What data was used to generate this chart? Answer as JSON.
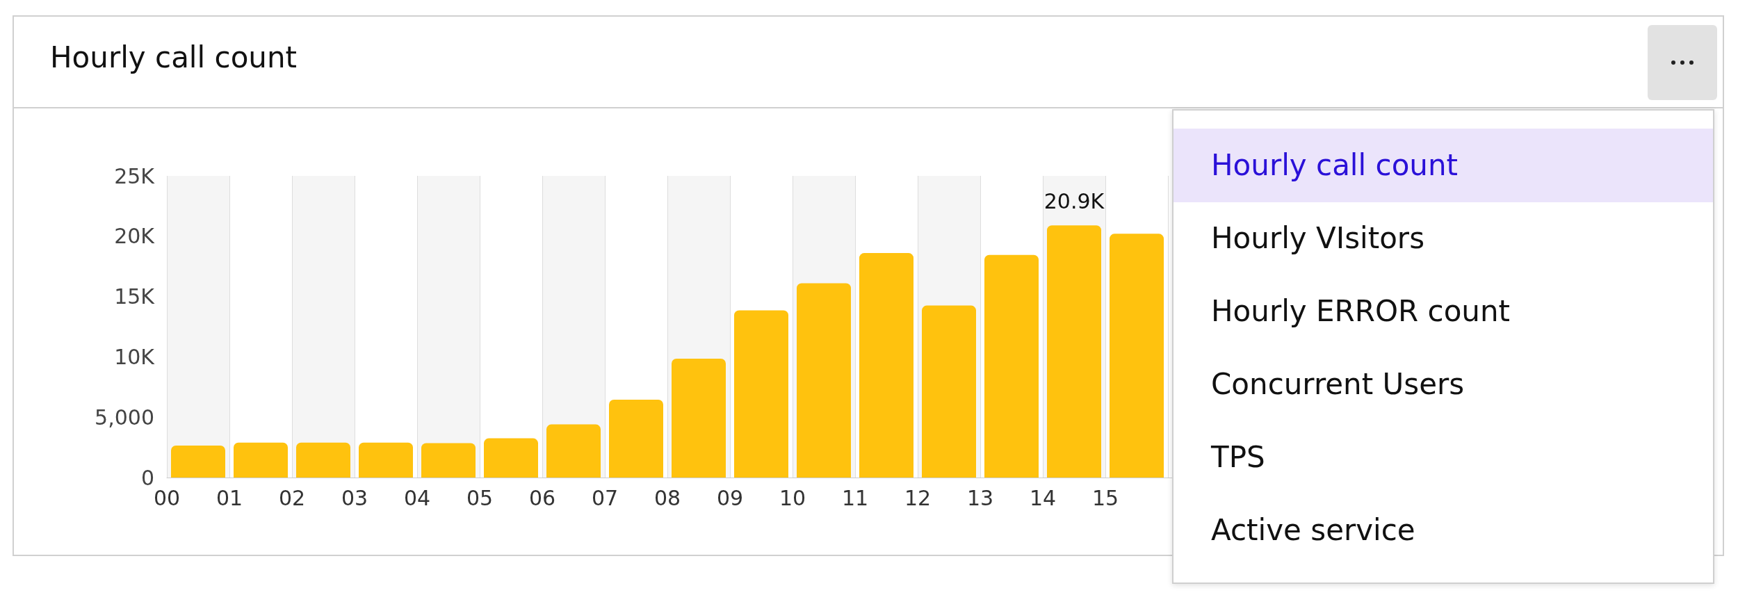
{
  "chart_data": {
    "type": "bar",
    "title": "Hourly call count",
    "x": [
      0.5,
      1.5,
      2.5,
      3.5,
      4.5,
      5.5,
      6.5,
      7.5,
      8.5,
      9.5,
      10.5,
      11.5,
      12.5,
      13.5,
      14.5,
      15.5
    ],
    "values": [
      2650,
      2900,
      2900,
      2900,
      2850,
      3250,
      4400,
      6450,
      9850,
      13850,
      16100,
      18600,
      14250,
      18450,
      20900,
      20200
    ],
    "color": "#ffc20e",
    "xlim": [
      0,
      24
    ],
    "xticks": [
      {
        "value": 0,
        "label": "00"
      },
      {
        "value": 1,
        "label": "01"
      },
      {
        "value": 2,
        "label": "02"
      },
      {
        "value": 3,
        "label": "03"
      },
      {
        "value": 4,
        "label": "04"
      },
      {
        "value": 5,
        "label": "05"
      },
      {
        "value": 6,
        "label": "06"
      },
      {
        "value": 7,
        "label": "07"
      },
      {
        "value": 8,
        "label": "08"
      },
      {
        "value": 9,
        "label": "09"
      },
      {
        "value": 10,
        "label": "10"
      },
      {
        "value": 11,
        "label": "11"
      },
      {
        "value": 12,
        "label": "12"
      },
      {
        "value": 13,
        "label": "13"
      },
      {
        "value": 14,
        "label": "14"
      },
      {
        "value": 15,
        "label": "15"
      },
      {
        "value": 16,
        "label": null
      }
    ],
    "ylim": [
      0,
      25000
    ],
    "yticks": [
      0,
      {
        "value": 5000,
        "label": "5,000"
      },
      {
        "value": 10000,
        "label": "10K"
      },
      {
        "value": 15000,
        "label": "15K"
      },
      {
        "value": 20000,
        "label": "20K"
      },
      {
        "value": 25000,
        "label": "25K"
      }
    ],
    "grid": "x",
    "annotations": [
      {
        "text": "20.9K",
        "x": 14.5,
        "y": 20900
      },
      "Hourly call count",
      "Hourly VIsitors",
      "Hourly ERROR count",
      "Concurrent Users",
      "TPS",
      "Active service"
    ]
  }
}
